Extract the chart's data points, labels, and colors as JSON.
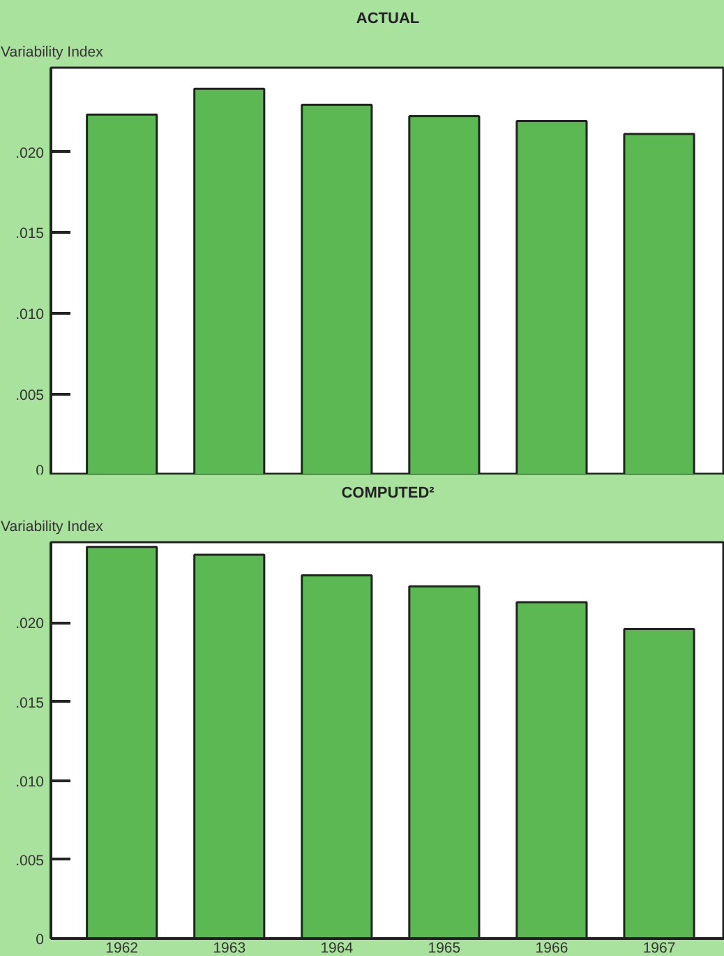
{
  "chart_data": [
    {
      "type": "bar",
      "title": "ACTUAL",
      "ylabel": "Variability Index",
      "categories": [
        "1962",
        "1963",
        "1964",
        "1965",
        "1966",
        "1967"
      ],
      "values": [
        0.0223,
        0.0239,
        0.0229,
        0.0222,
        0.0219,
        0.0211
      ],
      "color": "#5bb852",
      "ylim": [
        0,
        0.0252
      ],
      "yticks": [
        {
          "value": 0,
          "label": "0"
        },
        {
          "value": 0.005,
          "label": ".005"
        },
        {
          "value": 0.01,
          "label": ".010"
        },
        {
          "value": 0.015,
          "label": ".015"
        },
        {
          "value": 0.02,
          "label": ".020"
        }
      ],
      "grid": false,
      "tick_labels": "y"
    },
    {
      "type": "bar",
      "title": "COMPUTED²",
      "ylabel": "Variability Index",
      "categories": [
        "1962",
        "1963",
        "1964",
        "1965",
        "1966",
        "1967"
      ],
      "values": [
        0.0248,
        0.0243,
        0.023,
        0.0223,
        0.0213,
        0.0196
      ],
      "color": "#5bb852",
      "ylim": [
        0,
        0.0251
      ],
      "yticks": [
        {
          "value": 0,
          "label": "0"
        },
        {
          "value": 0.005,
          "label": ".005"
        },
        {
          "value": 0.01,
          "label": ".010"
        },
        {
          "value": 0.015,
          "label": ".015"
        },
        {
          "value": 0.02,
          "label": ".020"
        }
      ],
      "grid": false
    }
  ]
}
